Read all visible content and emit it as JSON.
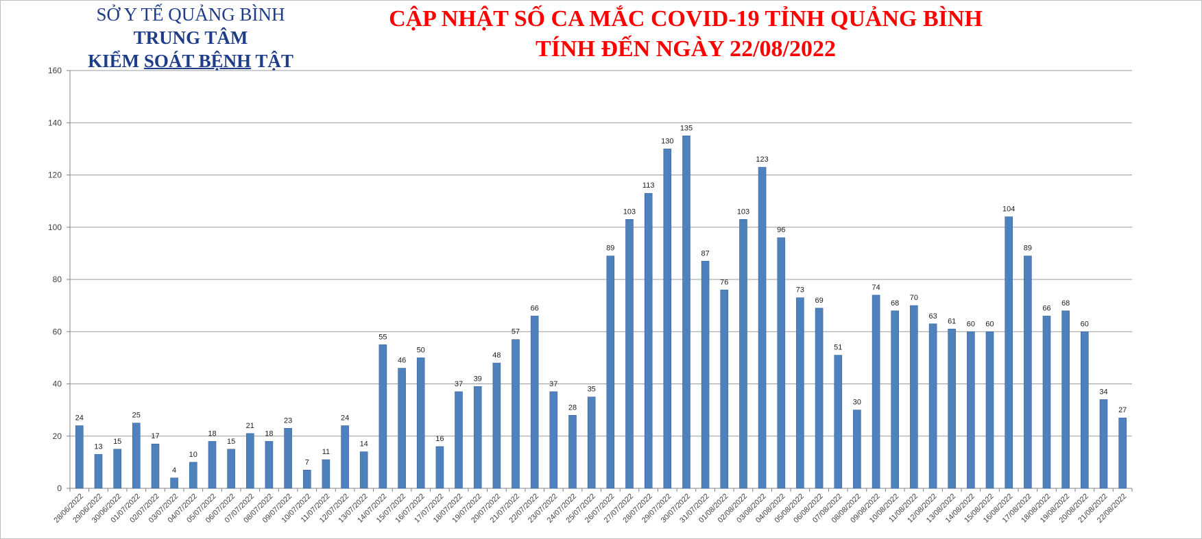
{
  "header": {
    "org_line1": "SỞ Y TẾ QUẢNG BÌNH",
    "org_line2": "TRUNG TÂM",
    "org_line3_a": "KIỂM ",
    "org_line3_b": "SOÁT BỆNH",
    "org_line3_c": " TẬT",
    "title_line1": "CẬP NHẬT SỐ CA MẮC COVID-19 TỈNH QUẢNG BÌNH",
    "title_line2": "TÍNH ĐẾN NGÀY 22/08/2022"
  },
  "colors": {
    "bar": "#4f81bd",
    "bar_edge": "#3a659a",
    "grid": "#9a9a9a",
    "title": "#ff0000",
    "org": "#1f3c88"
  },
  "chart_data": {
    "type": "bar",
    "title": "CẬP NHẬT SỐ CA MẮC COVID-19 TỈNH QUẢNG BÌNH TÍNH ĐẾN NGÀY 22/08/2022",
    "xlabel": "",
    "ylabel": "",
    "ylim": [
      0,
      160
    ],
    "yticks": [
      0,
      20,
      40,
      60,
      80,
      100,
      120,
      140,
      160
    ],
    "grid": true,
    "legend": "none",
    "data_labels": true,
    "categories": [
      "28/06/2022",
      "29/06/2022",
      "30/06/2022",
      "01/07/2022",
      "02/07/2022",
      "03/07/2022",
      "04/07/2022",
      "05/07/2022",
      "06/07/2022",
      "07/07/2022",
      "08/07/2022",
      "09/07/2022",
      "10/07/2022",
      "11/07/2022",
      "12/07/2022",
      "13/07/2022",
      "14/07/2022",
      "15/07/2022",
      "16/07/2022",
      "17/07/2022",
      "18/07/2022",
      "19/07/2022",
      "20/07/2022",
      "21/07/2022",
      "22/07/2022",
      "23/07/2022",
      "24/07/2022",
      "25/07/2022",
      "26/07/2022",
      "27/07/2022",
      "28/07/2022",
      "29/07/2022",
      "30/07/2022",
      "31/07/2022",
      "01/08/2022",
      "02/08/2022",
      "03/08/2022",
      "04/08/2022",
      "05/08/2022",
      "06/08/2022",
      "07/08/2022",
      "08/08/2022",
      "09/08/2022",
      "10/08/2022",
      "11/08/2022",
      "12/08/2022",
      "13/08/2022",
      "14/08/2022",
      "15/08/2022",
      "16/08/2022",
      "17/08/2022",
      "18/08/2022",
      "19/08/2022",
      "20/08/2022",
      "21/08/2022",
      "22/08/2022"
    ],
    "values": [
      24,
      13,
      15,
      25,
      17,
      4,
      10,
      18,
      15,
      21,
      18,
      23,
      7,
      11,
      24,
      14,
      55,
      46,
      50,
      16,
      37,
      39,
      48,
      57,
      66,
      37,
      28,
      35,
      89,
      103,
      113,
      130,
      135,
      87,
      76,
      103,
      123,
      96,
      73,
      69,
      51,
      30,
      74,
      68,
      70,
      63,
      61,
      60,
      60,
      104,
      89,
      66,
      68,
      60,
      34,
      27
    ]
  }
}
